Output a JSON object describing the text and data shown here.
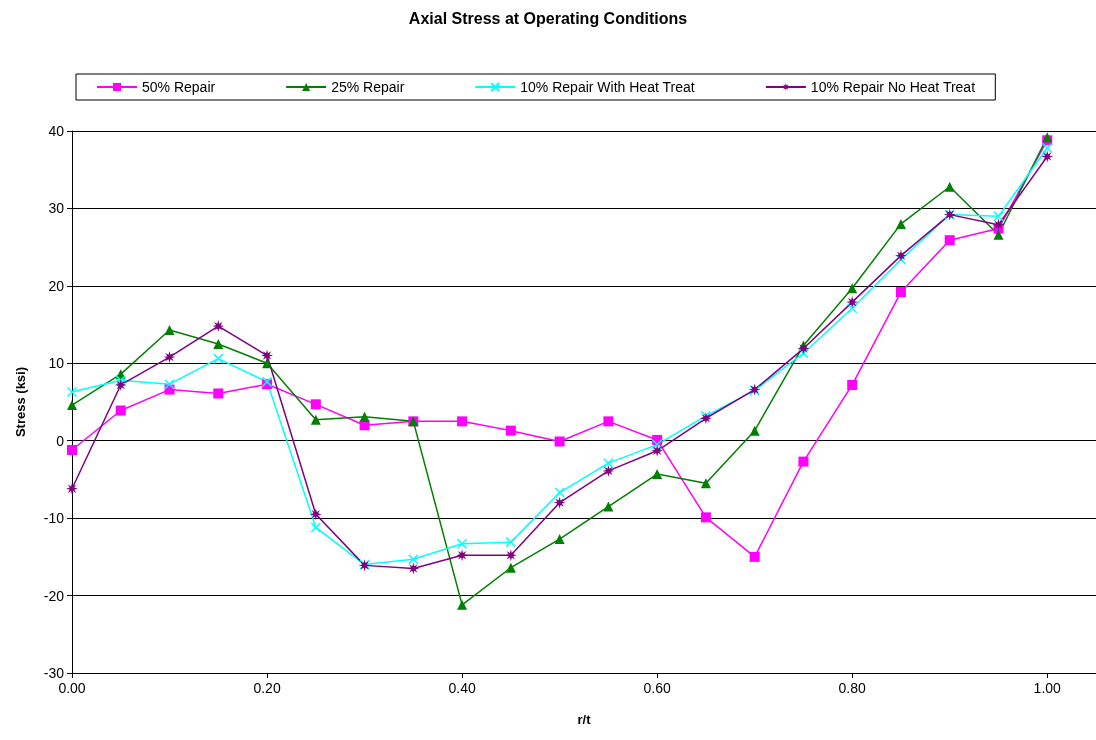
{
  "chart_data": {
    "type": "line",
    "title": "Axial Stress at Operating Conditions",
    "xlabel": "r/t",
    "ylabel": "Stress (ksi)",
    "x": [
      0,
      0.05,
      0.1,
      0.15,
      0.2,
      0.25,
      0.3,
      0.35,
      0.4,
      0.45,
      0.5,
      0.55,
      0.6,
      0.65,
      0.7,
      0.75,
      0.8,
      0.85,
      0.9,
      0.95,
      1.0
    ],
    "series": [
      {
        "name": "50% Repair",
        "color": "#ff00ff",
        "marker": "square",
        "values": [
          -1.2,
          3.9,
          6.6,
          6.1,
          7.3,
          4.7,
          2.0,
          2.5,
          2.5,
          1.3,
          -0.1,
          2.5,
          0.1,
          -9.9,
          -15.0,
          -2.7,
          7.2,
          19.2,
          25.9,
          27.4,
          38.8
        ]
      },
      {
        "name": "25% Repair",
        "color": "#008000",
        "marker": "triangle",
        "values": [
          4.6,
          8.6,
          14.3,
          12.5,
          10.0,
          2.7,
          3.1,
          2.5,
          -21.2,
          -16.4,
          -12.7,
          -8.5,
          -4.3,
          -5.5,
          1.3,
          12.3,
          19.7,
          28.0,
          32.8,
          26.6,
          39.2
        ]
      },
      {
        "name": "10% Repair With Heat Treat",
        "color": "#00ffff",
        "marker": "cross",
        "values": [
          6.3,
          7.8,
          7.3,
          10.6,
          7.6,
          -11.2,
          -16.0,
          -15.3,
          -13.3,
          -13.1,
          -6.7,
          -2.9,
          -0.5,
          3.2,
          6.5,
          11.3,
          17.1,
          23.4,
          29.2,
          29.0,
          37.8
        ]
      },
      {
        "name": "10% Repair No Heat Treat",
        "color": "#800080",
        "marker": "star",
        "values": [
          -6.2,
          7.2,
          10.8,
          14.8,
          11.0,
          -9.5,
          -16.1,
          -16.5,
          -14.8,
          -14.8,
          -8.0,
          -3.9,
          -1.3,
          2.9,
          6.6,
          11.9,
          17.9,
          23.9,
          29.2,
          27.9,
          36.7
        ]
      }
    ],
    "xlim": [
      0,
      1.05
    ],
    "xticks": [
      {
        "value": 0,
        "label": "0.00"
      },
      {
        "value": 0.2,
        "label": "0.20"
      },
      {
        "value": 0.4,
        "label": "0.40"
      },
      {
        "value": 0.6,
        "label": "0.60"
      },
      {
        "value": 0.8,
        "label": "0.80"
      },
      {
        "value": 1,
        "label": "1.00"
      }
    ],
    "ylim": [
      -30,
      40
    ],
    "yticks": [
      -30,
      -20,
      -10,
      0,
      10,
      20,
      30,
      40
    ],
    "grid": "y",
    "legend": "top",
    "line_style": "solid"
  }
}
